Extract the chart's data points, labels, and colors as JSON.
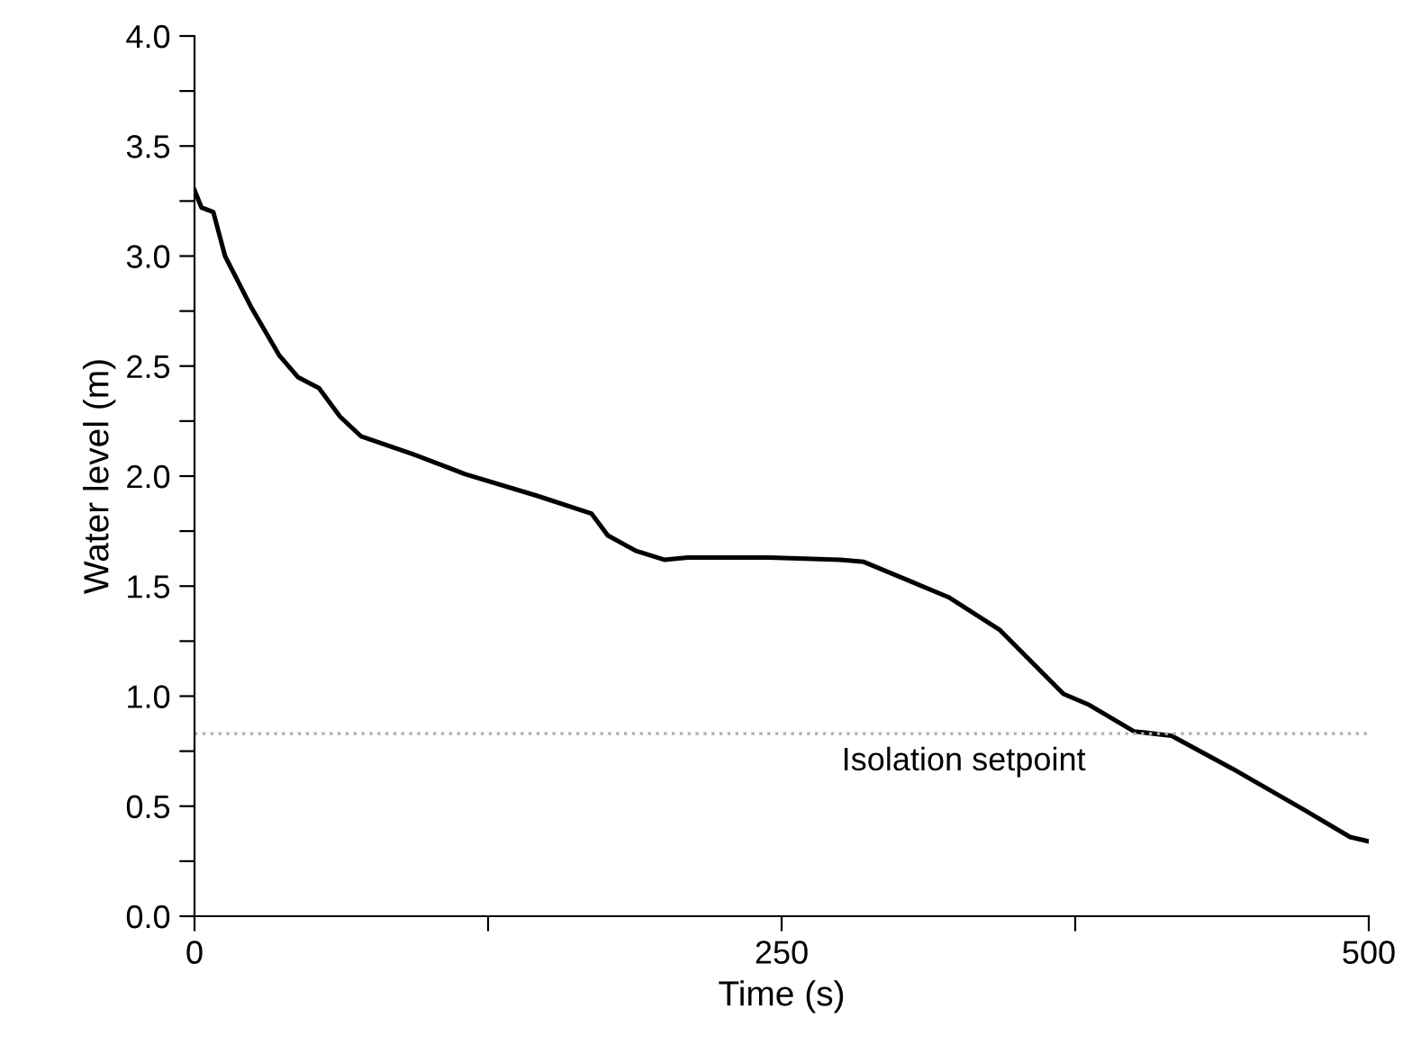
{
  "chart_data": {
    "type": "line",
    "xlabel": "Time (s)",
    "ylabel": "Water level (m)",
    "x": [
      0,
      3,
      8,
      13,
      24,
      36,
      44,
      53,
      62,
      71,
      93,
      115,
      146,
      169,
      176,
      188,
      200,
      210,
      245,
      275,
      285,
      321,
      343,
      370,
      381,
      400,
      416,
      442,
      473,
      492,
      500
    ],
    "series": [
      {
        "color": "#000000",
        "values": [
          3.3,
          3.22,
          3.2,
          3.0,
          2.77,
          2.55,
          2.45,
          2.4,
          2.27,
          2.18,
          2.1,
          2.01,
          1.91,
          1.83,
          1.73,
          1.66,
          1.62,
          1.63,
          1.63,
          1.62,
          1.61,
          1.45,
          1.3,
          1.01,
          0.96,
          0.84,
          0.82,
          0.67,
          0.48,
          0.36,
          0.34
        ]
      }
    ],
    "xlim": [
      0,
      500
    ],
    "ylim": [
      0,
      4
    ],
    "xticks": [
      0,
      {
        "value": 125,
        "label": null
      },
      250,
      {
        "value": 375,
        "label": null
      },
      500
    ],
    "yticks": [
      {
        "value": 0,
        "label": "0.0"
      },
      {
        "value": 0.25,
        "label": null
      },
      {
        "value": 0.5,
        "label": "0.5"
      },
      {
        "value": 0.75,
        "label": null
      },
      {
        "value": 1.0,
        "label": "1.0"
      },
      {
        "value": 1.25,
        "label": null
      },
      {
        "value": 1.5,
        "label": "1.5"
      },
      {
        "value": 1.75,
        "label": null
      },
      {
        "value": 2.0,
        "label": "2.0"
      },
      {
        "value": 2.25,
        "label": null
      },
      {
        "value": 2.5,
        "label": "2.5"
      },
      {
        "value": 2.75,
        "label": null
      },
      {
        "value": 3.0,
        "label": "3.0"
      },
      {
        "value": 3.25,
        "label": null
      },
      {
        "value": 3.5,
        "label": "3.5"
      },
      {
        "value": 3.75,
        "label": null
      },
      {
        "value": 4.0,
        "label": "4.0"
      }
    ],
    "ref_lines": [
      {
        "axis": "y",
        "value": 0.83,
        "label": "Isolation setpoint",
        "color": "#b0b0b0",
        "line_style": "dotted"
      }
    ],
    "grid": false,
    "legend": false
  }
}
